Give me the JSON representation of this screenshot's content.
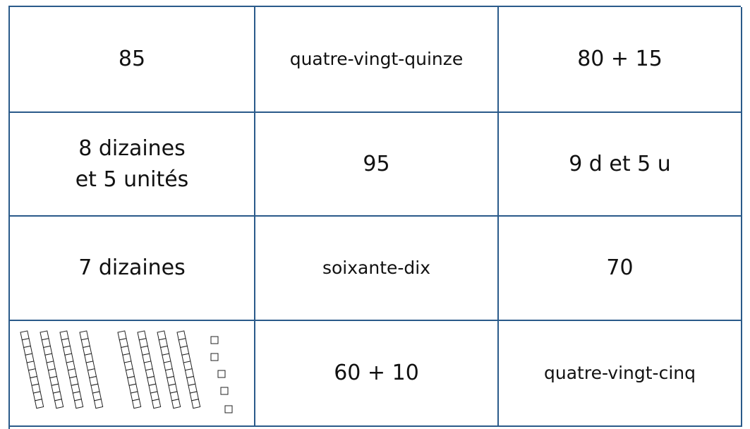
{
  "table": {
    "rows": [
      [
        "85",
        "quatre-vingt-quinze",
        "80 + 15"
      ],
      [
        [
          "8 dizaines",
          "et 5 unités"
        ],
        "95",
        "9 d et 5 u"
      ],
      [
        "7 dizaines",
        "soixante-dix",
        "70"
      ],
      [
        null,
        "60 + 10",
        "quatre-vingt-cinq"
      ]
    ]
  }
}
